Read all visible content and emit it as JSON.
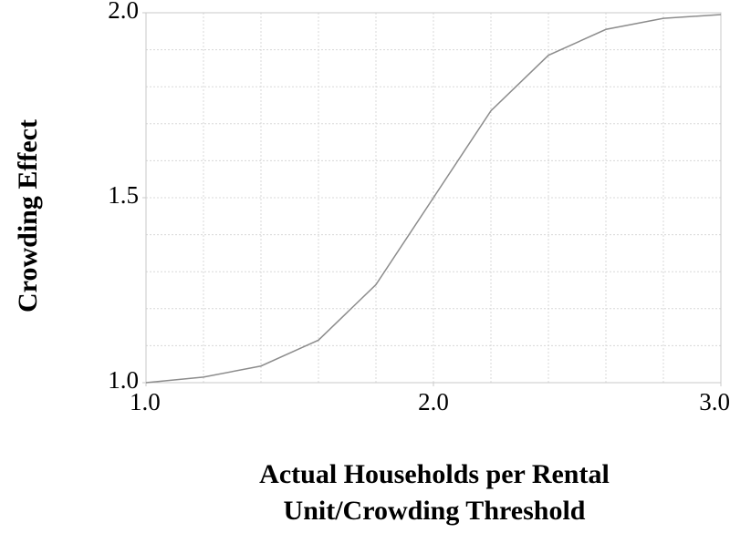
{
  "chart_data": {
    "type": "line",
    "xlabel": [
      "Actual Households per Rental",
      "Unit/Crowding Threshold"
    ],
    "ylabel": "Crowding Effect",
    "x": [
      1.0,
      1.2,
      1.4,
      1.6,
      1.8,
      2.0,
      2.2,
      2.4,
      2.6,
      2.8,
      3.0
    ],
    "series": [
      {
        "color": "#8c8c8c",
        "values": [
          1.0,
          1.015,
          1.045,
          1.115,
          1.265,
          1.5,
          1.735,
          1.885,
          1.955,
          1.985,
          1.995
        ]
      }
    ],
    "xlim": [
      1.0,
      3.0
    ],
    "ylim": [
      1.0,
      2.0
    ],
    "xticks": [
      {
        "value": 1.0,
        "label": "1.0"
      },
      {
        "value": 2.0,
        "label": "2.0"
      },
      {
        "value": 3.0,
        "label": "3.0"
      }
    ],
    "yticks": [
      {
        "value": 1.0,
        "label": "1.0"
      },
      {
        "value": 1.5,
        "label": "1.5"
      },
      {
        "value": 2.0,
        "label": "2.0"
      }
    ],
    "xgrid": [
      1.2,
      1.4,
      1.6,
      1.8,
      2.0,
      2.2,
      2.4,
      2.6,
      2.8
    ],
    "ygrid": [
      1.1,
      1.2,
      1.3,
      1.4,
      1.5,
      1.6,
      1.7,
      1.8,
      1.9
    ],
    "grid": true
  }
}
